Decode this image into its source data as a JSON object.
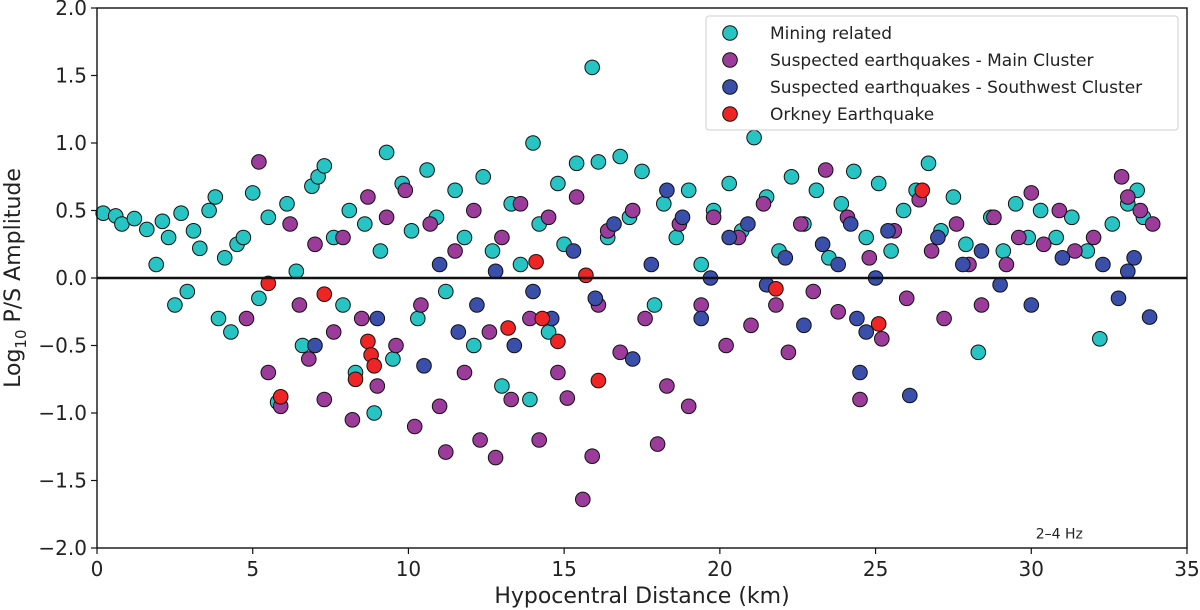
{
  "chart_data": {
    "type": "scatter",
    "xlabel": "Hypocentral Distance (km)",
    "ylabel_prefix": "Log",
    "ylabel_sub": "10",
    "ylabel_suffix": " P/S Amplitude",
    "xlim": [
      0,
      35
    ],
    "ylim": [
      -2.0,
      2.0
    ],
    "xticks": [
      0,
      5,
      10,
      15,
      20,
      25,
      30,
      35
    ],
    "yticks": [
      -2.0,
      -1.5,
      -1.0,
      -0.5,
      0.0,
      0.5,
      1.0,
      1.5,
      2.0
    ],
    "ytick_labels": [
      "−2.0",
      "−1.5",
      "−1.0",
      "−0.5",
      "0.0",
      "0.5",
      "1.0",
      "1.5",
      "2.0"
    ],
    "reference_line_y": 0.0,
    "legend_position": "top-right",
    "annotation": "2–4 Hz",
    "series": [
      {
        "name": "Mining related",
        "color": "#27c4c4",
        "points": [
          [
            0.2,
            0.48
          ],
          [
            0.6,
            0.46
          ],
          [
            0.8,
            0.4
          ],
          [
            1.2,
            0.44
          ],
          [
            1.6,
            0.36
          ],
          [
            1.9,
            0.1
          ],
          [
            2.1,
            0.42
          ],
          [
            2.3,
            0.3
          ],
          [
            2.5,
            -0.2
          ],
          [
            2.7,
            0.48
          ],
          [
            2.9,
            -0.1
          ],
          [
            3.1,
            0.35
          ],
          [
            3.3,
            0.22
          ],
          [
            3.6,
            0.5
          ],
          [
            3.8,
            0.6
          ],
          [
            3.9,
            -0.3
          ],
          [
            4.1,
            0.15
          ],
          [
            4.3,
            -0.4
          ],
          [
            4.5,
            0.25
          ],
          [
            4.7,
            0.3
          ],
          [
            5.0,
            0.63
          ],
          [
            5.2,
            -0.15
          ],
          [
            5.5,
            0.45
          ],
          [
            5.8,
            -0.92
          ],
          [
            6.1,
            0.55
          ],
          [
            6.4,
            0.05
          ],
          [
            6.6,
            -0.5
          ],
          [
            6.9,
            0.68
          ],
          [
            7.1,
            0.75
          ],
          [
            7.3,
            0.83
          ],
          [
            7.6,
            0.3
          ],
          [
            7.9,
            -0.2
          ],
          [
            8.1,
            0.5
          ],
          [
            8.3,
            -0.7
          ],
          [
            8.6,
            0.4
          ],
          [
            8.9,
            -1.0
          ],
          [
            9.1,
            0.2
          ],
          [
            9.3,
            0.93
          ],
          [
            9.5,
            -0.6
          ],
          [
            9.8,
            0.7
          ],
          [
            10.1,
            0.35
          ],
          [
            10.3,
            -0.3
          ],
          [
            10.6,
            0.8
          ],
          [
            10.9,
            0.45
          ],
          [
            11.2,
            -0.1
          ],
          [
            11.5,
            0.65
          ],
          [
            11.8,
            0.3
          ],
          [
            12.1,
            -0.5
          ],
          [
            12.4,
            0.75
          ],
          [
            12.7,
            0.2
          ],
          [
            13.0,
            -0.8
          ],
          [
            13.3,
            0.55
          ],
          [
            13.6,
            0.1
          ],
          [
            13.9,
            -0.9
          ],
          [
            14.0,
            1.0
          ],
          [
            14.2,
            0.4
          ],
          [
            14.5,
            -0.4
          ],
          [
            14.8,
            0.7
          ],
          [
            15.0,
            0.25
          ],
          [
            15.4,
            0.85
          ],
          [
            15.9,
            1.56
          ],
          [
            16.1,
            0.86
          ],
          [
            16.4,
            0.3
          ],
          [
            16.8,
            0.9
          ],
          [
            17.1,
            0.45
          ],
          [
            17.5,
            0.79
          ],
          [
            17.9,
            -0.2
          ],
          [
            18.2,
            0.55
          ],
          [
            18.6,
            0.3
          ],
          [
            19.0,
            0.65
          ],
          [
            19.4,
            0.1
          ],
          [
            19.8,
            0.5
          ],
          [
            20.3,
            0.7
          ],
          [
            20.7,
            0.35
          ],
          [
            21.1,
            1.04
          ],
          [
            21.5,
            0.6
          ],
          [
            21.9,
            0.2
          ],
          [
            22.3,
            0.75
          ],
          [
            22.7,
            0.4
          ],
          [
            23.1,
            0.65
          ],
          [
            23.5,
            0.15
          ],
          [
            23.9,
            0.55
          ],
          [
            24.3,
            0.79
          ],
          [
            24.7,
            0.3
          ],
          [
            25.1,
            0.7
          ],
          [
            25.5,
            0.2
          ],
          [
            25.9,
            0.5
          ],
          [
            26.3,
            0.65
          ],
          [
            26.7,
            0.85
          ],
          [
            27.1,
            0.35
          ],
          [
            27.5,
            0.6
          ],
          [
            27.9,
            0.25
          ],
          [
            28.3,
            -0.55
          ],
          [
            28.7,
            0.45
          ],
          [
            29.1,
            0.2
          ],
          [
            29.5,
            0.55
          ],
          [
            29.9,
            0.3
          ],
          [
            30.3,
            0.5
          ],
          [
            30.8,
            0.3
          ],
          [
            31.3,
            0.45
          ],
          [
            31.8,
            0.2
          ],
          [
            32.2,
            -0.45
          ],
          [
            32.6,
            0.4
          ],
          [
            33.1,
            0.55
          ],
          [
            33.4,
            0.65
          ],
          [
            33.6,
            0.45
          ]
        ]
      },
      {
        "name": "Suspected earthquakes - Main Cluster",
        "color": "#9b3c9b",
        "points": [
          [
            4.8,
            -0.3
          ],
          [
            5.2,
            0.86
          ],
          [
            5.5,
            -0.7
          ],
          [
            5.9,
            -0.95
          ],
          [
            6.2,
            0.4
          ],
          [
            6.5,
            -0.2
          ],
          [
            6.8,
            -0.6
          ],
          [
            7.0,
            0.25
          ],
          [
            7.3,
            -0.9
          ],
          [
            7.6,
            -0.4
          ],
          [
            7.9,
            0.3
          ],
          [
            8.2,
            -1.05
          ],
          [
            8.5,
            -0.3
          ],
          [
            8.7,
            0.6
          ],
          [
            9.0,
            -0.8
          ],
          [
            9.3,
            0.45
          ],
          [
            9.6,
            -0.5
          ],
          [
            9.9,
            0.65
          ],
          [
            10.2,
            -1.1
          ],
          [
            10.4,
            -0.2
          ],
          [
            10.7,
            0.4
          ],
          [
            11.0,
            -0.95
          ],
          [
            11.2,
            -1.29
          ],
          [
            11.5,
            0.2
          ],
          [
            11.8,
            -0.7
          ],
          [
            12.1,
            0.5
          ],
          [
            12.3,
            -1.2
          ],
          [
            12.6,
            -0.4
          ],
          [
            12.8,
            -1.33
          ],
          [
            13.0,
            0.3
          ],
          [
            13.3,
            -0.9
          ],
          [
            13.6,
            0.55
          ],
          [
            13.9,
            -0.3
          ],
          [
            14.2,
            -1.2
          ],
          [
            14.5,
            0.45
          ],
          [
            14.8,
            -0.7
          ],
          [
            15.1,
            -0.89
          ],
          [
            15.4,
            0.6
          ],
          [
            15.6,
            -1.64
          ],
          [
            15.9,
            -1.32
          ],
          [
            16.1,
            -0.2
          ],
          [
            16.4,
            0.35
          ],
          [
            16.8,
            -0.55
          ],
          [
            17.2,
            0.5
          ],
          [
            17.6,
            -0.3
          ],
          [
            18.0,
            -1.23
          ],
          [
            18.3,
            -0.8
          ],
          [
            18.7,
            0.4
          ],
          [
            19.0,
            -0.95
          ],
          [
            19.4,
            -0.2
          ],
          [
            19.8,
            0.45
          ],
          [
            20.2,
            -0.5
          ],
          [
            20.6,
            0.3
          ],
          [
            21.0,
            -0.35
          ],
          [
            21.4,
            0.55
          ],
          [
            21.8,
            -0.2
          ],
          [
            22.2,
            -0.55
          ],
          [
            22.6,
            0.4
          ],
          [
            23.0,
            -0.1
          ],
          [
            23.4,
            0.8
          ],
          [
            23.8,
            -0.25
          ],
          [
            24.1,
            0.45
          ],
          [
            24.5,
            -0.9
          ],
          [
            24.8,
            0.15
          ],
          [
            25.2,
            -0.45
          ],
          [
            25.6,
            0.35
          ],
          [
            26.0,
            -0.15
          ],
          [
            26.4,
            0.58
          ],
          [
            26.8,
            0.2
          ],
          [
            27.2,
            -0.3
          ],
          [
            27.6,
            0.4
          ],
          [
            28.0,
            0.1
          ],
          [
            28.4,
            -0.2
          ],
          [
            28.8,
            0.45
          ],
          [
            29.2,
            0.1
          ],
          [
            29.6,
            0.3
          ],
          [
            30.0,
            0.63
          ],
          [
            30.4,
            0.25
          ],
          [
            30.9,
            0.5
          ],
          [
            31.4,
            0.2
          ],
          [
            32.0,
            0.3
          ],
          [
            32.9,
            0.75
          ],
          [
            33.1,
            0.6
          ],
          [
            33.5,
            0.5
          ],
          [
            33.9,
            0.4
          ]
        ]
      },
      {
        "name": "Suspected earthquakes - Southwest Cluster",
        "color": "#3a4faa",
        "points": [
          [
            7.0,
            -0.5
          ],
          [
            9.0,
            -0.3
          ],
          [
            10.5,
            -0.65
          ],
          [
            11.0,
            0.1
          ],
          [
            11.6,
            -0.4
          ],
          [
            12.2,
            -0.2
          ],
          [
            12.8,
            0.05
          ],
          [
            13.4,
            -0.5
          ],
          [
            14.0,
            -0.1
          ],
          [
            14.6,
            -0.3
          ],
          [
            15.3,
            0.2
          ],
          [
            16.0,
            -0.15
          ],
          [
            16.6,
            0.4
          ],
          [
            17.2,
            -0.6
          ],
          [
            17.8,
            0.1
          ],
          [
            18.3,
            0.65
          ],
          [
            18.8,
            0.45
          ],
          [
            19.4,
            -0.3
          ],
          [
            19.7,
            0.0
          ],
          [
            20.3,
            0.3
          ],
          [
            20.9,
            0.4
          ],
          [
            21.5,
            -0.05
          ],
          [
            22.1,
            0.15
          ],
          [
            22.7,
            -0.35
          ],
          [
            23.3,
            0.25
          ],
          [
            23.8,
            0.1
          ],
          [
            24.2,
            0.4
          ],
          [
            24.4,
            -0.3
          ],
          [
            24.5,
            -0.7
          ],
          [
            24.7,
            -0.4
          ],
          [
            25.0,
            0.0
          ],
          [
            25.4,
            0.35
          ],
          [
            26.1,
            -0.87
          ],
          [
            27.0,
            0.3
          ],
          [
            27.8,
            0.1
          ],
          [
            28.4,
            0.2
          ],
          [
            29.0,
            -0.05
          ],
          [
            30.0,
            -0.2
          ],
          [
            31.0,
            0.15
          ],
          [
            32.3,
            0.1
          ],
          [
            32.8,
            -0.15
          ],
          [
            33.1,
            0.05
          ],
          [
            33.8,
            -0.29
          ],
          [
            33.3,
            0.15
          ]
        ]
      },
      {
        "name": "Orkney Earthquake",
        "color": "#ef2424",
        "points": [
          [
            5.5,
            -0.04
          ],
          [
            5.9,
            -0.88
          ],
          [
            7.3,
            -0.12
          ],
          [
            8.3,
            -0.75
          ],
          [
            8.7,
            -0.47
          ],
          [
            8.8,
            -0.57
          ],
          [
            8.9,
            -0.65
          ],
          [
            13.2,
            -0.37
          ],
          [
            14.1,
            0.12
          ],
          [
            14.3,
            -0.3
          ],
          [
            14.8,
            -0.47
          ],
          [
            15.7,
            0.02
          ],
          [
            16.1,
            -0.76
          ],
          [
            21.8,
            -0.08
          ],
          [
            25.1,
            -0.34
          ],
          [
            26.5,
            0.65
          ]
        ]
      }
    ]
  }
}
